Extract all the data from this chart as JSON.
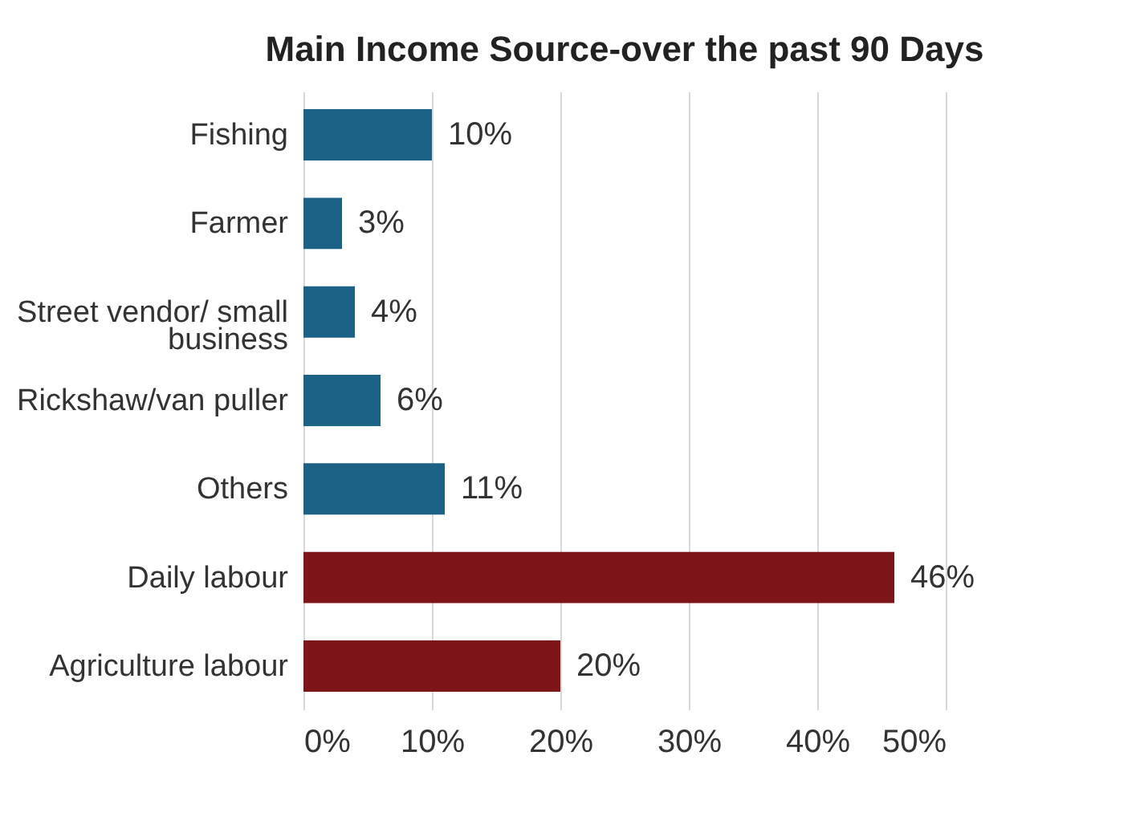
{
  "chart_data": {
    "type": "bar",
    "orientation": "horizontal",
    "title": "Main Income Source-over the past 90 Days",
    "categories": [
      "Fishing",
      "Farmer",
      "Street vendor/ small business",
      "Rickshaw/van puller",
      "Others",
      "Daily labour",
      "Agriculture labour"
    ],
    "values": [
      10,
      3,
      4,
      6,
      11,
      46,
      20
    ],
    "value_labels": [
      "10%",
      "3%",
      "4%",
      "6%",
      "11%",
      "46%",
      "20%"
    ],
    "colors": [
      "#1b6286",
      "#1b6286",
      "#1b6286",
      "#1b6286",
      "#1b6286",
      "#7e1519",
      "#7e1519"
    ],
    "xlim": [
      0,
      50
    ],
    "xticks": [
      {
        "value": 0,
        "label": "0%"
      },
      {
        "value": 10,
        "label": "10%"
      },
      {
        "value": 20,
        "label": "20%"
      },
      {
        "value": 30,
        "label": "30%"
      },
      {
        "value": 40,
        "label": "40%"
      },
      {
        "value": 50,
        "label": "50%"
      }
    ],
    "grid": "x"
  }
}
